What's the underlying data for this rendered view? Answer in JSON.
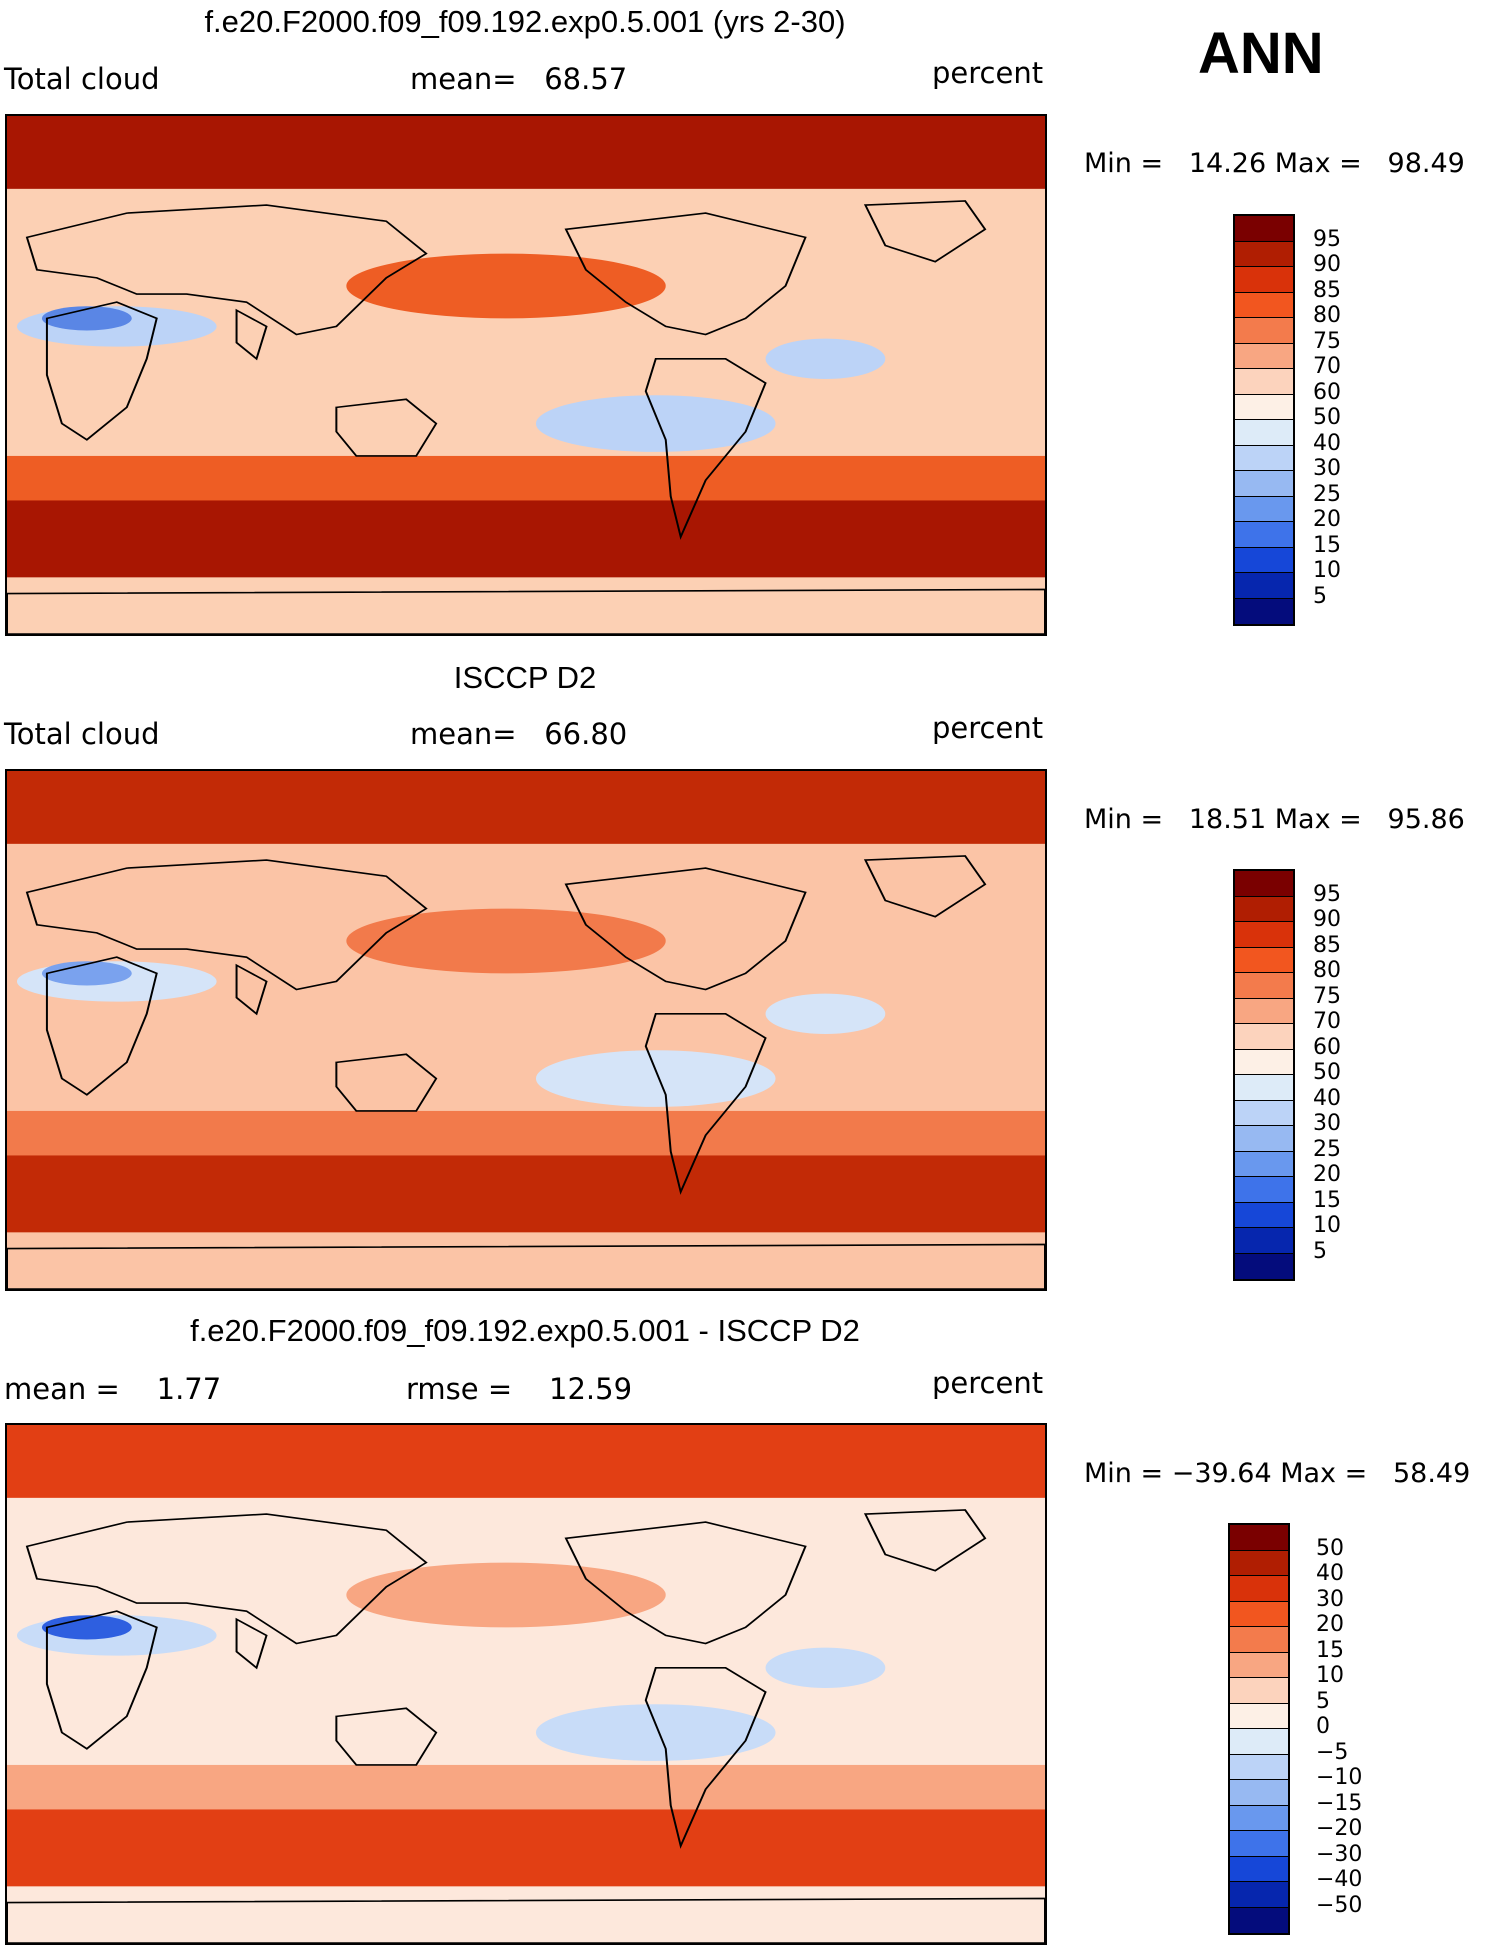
{
  "season": "ANN",
  "panels": [
    {
      "title": "f.e20.F2000.f09_f09.192.exp0.5.001 (yrs 2-30)",
      "left_label": "Total cloud",
      "center_label": "mean=   68.57",
      "right_label": "percent",
      "minmax": "Min =   14.26 Max =   98.49",
      "colorbar": {
        "colors": [
          "#7a0000",
          "#b01e02",
          "#d9320a",
          "#f2561f",
          "#f37b4c",
          "#f8a682",
          "#fcd3bd",
          "#fdf0e6",
          "#ddebf8",
          "#bcd3f7",
          "#97b9f2",
          "#6998ee",
          "#3e73ea",
          "#1647d8",
          "#0626ae",
          "#040c7c"
        ],
        "labels": [
          "95",
          "90",
          "85",
          "80",
          "75",
          "70",
          "60",
          "50",
          "40",
          "30",
          "25",
          "20",
          "15",
          "10",
          "5"
        ]
      },
      "map_colors": {
        "ocean": "#fcd0b4",
        "band_high": "#a81602",
        "band_mid": "#ee5d24",
        "band_low": "#bcd3f7",
        "band_vlow": "#5a86e5"
      }
    },
    {
      "title": "ISCCP D2",
      "left_label": "Total cloud",
      "center_label": "mean=   66.80",
      "right_label": "percent",
      "minmax": "Min =   18.51 Max =   95.86",
      "colorbar": {
        "colors": [
          "#7a0000",
          "#b01e02",
          "#d9320a",
          "#f2561f",
          "#f37b4c",
          "#f8a682",
          "#fcd3bd",
          "#fdf0e6",
          "#ddebf8",
          "#bcd3f7",
          "#97b9f2",
          "#6998ee",
          "#3e73ea",
          "#1647d8",
          "#0626ae",
          "#040c7c"
        ],
        "labels": [
          "95",
          "90",
          "85",
          "80",
          "75",
          "70",
          "60",
          "50",
          "40",
          "30",
          "25",
          "20",
          "15",
          "10",
          "5"
        ]
      },
      "map_colors": {
        "ocean": "#fbc4a6",
        "band_high": "#c22a06",
        "band_mid": "#f27a4b",
        "band_low": "#d5e4f8",
        "band_vlow": "#7aa2ee"
      }
    },
    {
      "title": "f.e20.F2000.f09_f09.192.exp0.5.001 - ISCCP D2",
      "left_label": "mean =    1.77",
      "center_label": "rmse =    12.59",
      "right_label": "percent",
      "minmax": "Min = −39.64 Max =   58.49",
      "colorbar": {
        "colors": [
          "#7a0000",
          "#b01e02",
          "#d9320a",
          "#f2561f",
          "#f37b4c",
          "#f8a682",
          "#fcd3bd",
          "#fdf0e6",
          "#ddebf8",
          "#bcd3f7",
          "#97b9f2",
          "#6998ee",
          "#3e73ea",
          "#1647d8",
          "#0626ae",
          "#040c7c"
        ],
        "labels": [
          "50",
          "40",
          "30",
          "20",
          "15",
          "10",
          "5",
          "0",
          "−5",
          "−10",
          "−15",
          "−20",
          "−30",
          "−40",
          "−50"
        ]
      },
      "map_colors": {
        "ocean": "#fde8dc",
        "band_high": "#e23f14",
        "band_mid": "#f8a682",
        "band_low": "#c8dcf8",
        "band_vlow": "#2e5fe0"
      }
    }
  ]
}
